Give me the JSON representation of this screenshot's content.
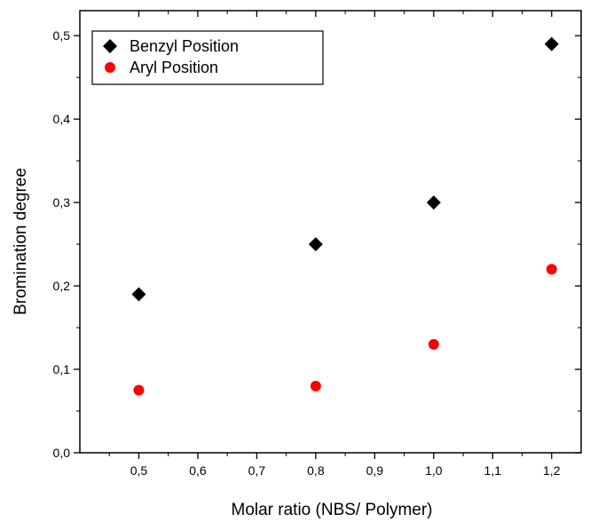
{
  "chart_data": {
    "type": "scatter",
    "xlabel": "Molar ratio (NBS/ Polymer)",
    "ylabel": "Bromination degree",
    "xlim": [
      0.4,
      1.25
    ],
    "ylim": [
      0.0,
      0.53
    ],
    "x_ticks": [
      "0,5",
      "0,6",
      "0,7",
      "0,8",
      "0,9",
      "1,0",
      "1,1",
      "1,2"
    ],
    "y_ticks": [
      "0,0",
      "0,1",
      "0,2",
      "0,3",
      "0,4",
      "0,5"
    ],
    "legend_position": "top-left",
    "series": [
      {
        "name": "Benzyl Position",
        "marker": "diamond",
        "color": "#000000",
        "points": [
          {
            "x": 0.5,
            "y": 0.19
          },
          {
            "x": 0.8,
            "y": 0.25
          },
          {
            "x": 1.0,
            "y": 0.3
          },
          {
            "x": 1.2,
            "y": 0.49
          }
        ]
      },
      {
        "name": "Aryl Position",
        "marker": "circle",
        "color": "#ff0000",
        "points": [
          {
            "x": 0.5,
            "y": 0.075
          },
          {
            "x": 0.8,
            "y": 0.08
          },
          {
            "x": 1.0,
            "y": 0.13
          },
          {
            "x": 1.2,
            "y": 0.22
          }
        ]
      }
    ]
  }
}
